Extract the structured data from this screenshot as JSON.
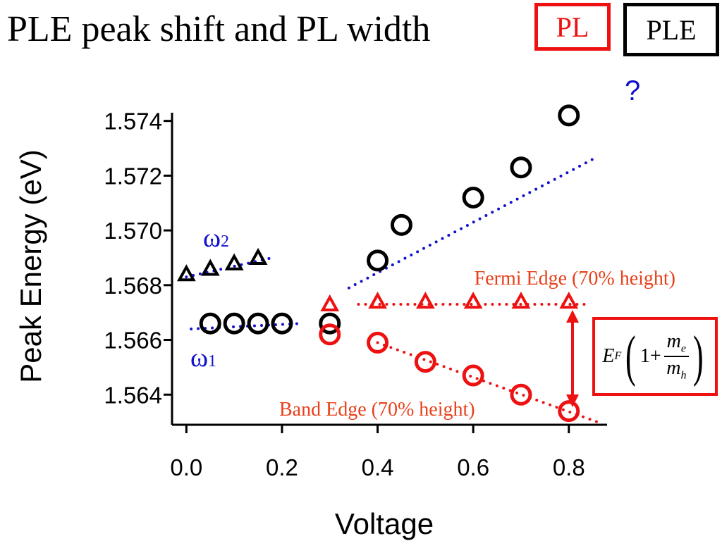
{
  "title": "PLE peak shift and PL width",
  "legend": {
    "pl_label": "PL",
    "ple_label": "PLE",
    "pl_color": "#ee1111",
    "ple_color": "#000000"
  },
  "annotations": {
    "omega2_base": "ω",
    "omega2_sub": "2",
    "omega1_base": "ω",
    "omega1_sub": "1",
    "question": "?",
    "fermi_edge": "Fermi Edge (70% height)",
    "band_edge": "Band Edge (70% height)",
    "formula": {
      "ef": "E",
      "ef_sub": "F",
      "one_plus": "1+",
      "num": "m",
      "num_sub": "e",
      "den": "m",
      "den_sub": "h"
    }
  },
  "colors": {
    "fit_line": "#1111cc",
    "pl": "#ee1111",
    "ple": "#000000",
    "edge_fit": "#ee1111"
  },
  "chart_data": {
    "type": "scatter",
    "xlabel": "Voltage",
    "ylabel": "Peak Energy (eV)",
    "xlim": [
      -0.03,
      0.88
    ],
    "ylim": [
      1.5629,
      1.5743
    ],
    "xticks": [
      0.0,
      0.2,
      0.4,
      0.6,
      0.8
    ],
    "xtick_labels": [
      "0.0",
      "0.2",
      "0.4",
      "0.6",
      "0.8"
    ],
    "yticks": [
      1.564,
      1.566,
      1.568,
      1.57,
      1.572,
      1.574
    ],
    "ytick_labels": [
      "1.564",
      "1.566",
      "1.568",
      "1.570",
      "1.572",
      "1.574"
    ],
    "grid": false,
    "series": [
      {
        "marker": "triangle",
        "color": "#000000",
        "x": [
          0.0,
          0.05,
          0.1,
          0.15
        ],
        "y": [
          1.5684,
          1.5686,
          1.5688,
          1.569
        ]
      },
      {
        "marker": "circle",
        "color": "#000000",
        "x": [
          0.05,
          0.1,
          0.15,
          0.2,
          0.3,
          0.4,
          0.45,
          0.6,
          0.7,
          0.8
        ],
        "y": [
          1.5666,
          1.5666,
          1.5666,
          1.5666,
          1.5666,
          1.5689,
          1.5702,
          1.5712,
          1.5723,
          1.5742
        ]
      },
      {
        "marker": "triangle",
        "color": "#ee1111",
        "x": [
          0.3,
          0.4,
          0.5,
          0.6,
          0.7,
          0.8
        ],
        "y": [
          1.5673,
          1.5674,
          1.5674,
          1.5674,
          1.5674,
          1.5674
        ]
      },
      {
        "marker": "circle",
        "color": "#ee1111",
        "x": [
          0.3,
          0.4,
          0.5,
          0.6,
          0.7,
          0.8
        ],
        "y": [
          1.5662,
          1.5659,
          1.5652,
          1.5647,
          1.564,
          1.5634
        ]
      }
    ],
    "fit_lines": [
      {
        "style": "dotted",
        "color": "#1111cc",
        "x": [
          0.0,
          0.18
        ],
        "y": [
          1.5683,
          1.569
        ]
      },
      {
        "style": "dotted",
        "color": "#1111cc",
        "x": [
          0.01,
          0.24
        ],
        "y": [
          1.5664,
          1.5666
        ]
      },
      {
        "style": "dotted",
        "color": "#1111cc",
        "x": [
          0.34,
          0.85
        ],
        "y": [
          1.5679,
          1.5726
        ]
      },
      {
        "style": "dotted",
        "color": "#ee1111",
        "x": [
          0.36,
          0.84
        ],
        "y": [
          1.5673,
          1.5673
        ]
      },
      {
        "style": "dotted",
        "color": "#ee1111",
        "x": [
          0.4,
          0.86
        ],
        "y": [
          1.5659,
          1.563
        ]
      }
    ]
  }
}
